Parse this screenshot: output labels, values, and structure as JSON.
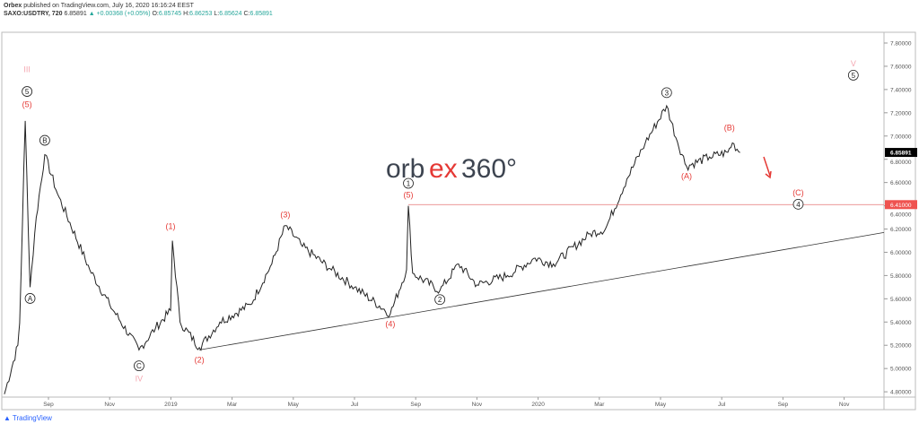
{
  "header": {
    "publisher": "Orbex",
    "published_text": "published on TradingView.com, July 16, 2020 16:16:24 EEST",
    "symbol": "SAXO:USDTRY, 720",
    "last": "6.85891",
    "arrow": "▲",
    "change": "+0.00368 (+0.05%)",
    "o_label": "O:",
    "o": "6.85745",
    "h_label": "H:",
    "h": "6.86253",
    "l_label": "L:",
    "l": "6.85624",
    "c_label": "C:",
    "c": "6.85891"
  },
  "logo": {
    "part1": "orb",
    "part2": "ex",
    "part3": "360°"
  },
  "footer": {
    "brand": "TradingView"
  },
  "colors": {
    "accent": "#e53935",
    "price_tag": "#000000",
    "level_tag": "#ef5350",
    "line": "#000000",
    "roman": "#f4a6b0"
  },
  "chart_data": {
    "type": "line",
    "title": "SAXO:USDTRY, 720",
    "x_unit": "months since 2018-08-01",
    "ylim": [
      4.8,
      7.8
    ],
    "yticks": [
      "7.80000",
      "7.60000",
      "7.40000",
      "7.20000",
      "7.00000",
      "6.80000",
      "6.60000",
      "6.40000",
      "6.20000",
      "6.00000",
      "5.80000",
      "5.60000",
      "5.40000",
      "5.20000",
      "5.00000",
      "4.80000"
    ],
    "ytick_values": [
      7.8,
      7.6,
      7.4,
      7.2,
      7.0,
      6.8,
      6.6,
      6.4,
      6.2,
      6.0,
      5.8,
      5.6,
      5.4,
      5.2,
      5.0,
      4.8
    ],
    "xticks": [
      "Sep",
      "Nov",
      "2019",
      "Mar",
      "May",
      "Jul",
      "Sep",
      "Nov",
      "2020",
      "Mar",
      "May",
      "Jul",
      "Sep",
      "Nov"
    ],
    "xtick_values": [
      1,
      3,
      5,
      7,
      9,
      11,
      13,
      15,
      17,
      19,
      21,
      23,
      25,
      27
    ],
    "last_price": {
      "label": "6.85891",
      "value": 6.85891
    },
    "level": {
      "label": "6.41000",
      "value": 6.41,
      "from_t": 12.76
    },
    "trendline": {
      "t": [
        5.93,
        28.3
      ],
      "p": [
        5.16,
        6.17
      ]
    },
    "series": [
      {
        "name": "USDTRY",
        "t": [
          -0.44,
          0.0,
          0.06,
          0.24,
          0.4,
          0.6,
          0.88,
          1.3,
          2.35,
          3.0,
          3.96,
          4.5,
          4.99,
          5.05,
          5.3,
          5.93,
          6.6,
          7.6,
          8.3,
          8.74,
          9.3,
          10.2,
          11.0,
          12.17,
          12.7,
          12.76,
          12.9,
          13.79,
          14.4,
          15.0,
          16.0,
          16.9,
          17.5,
          18.7,
          19.2,
          19.9,
          20.5,
          21.2,
          21.55,
          21.85,
          22.6,
          23.2,
          23.35,
          23.6
        ],
        "p": [
          4.78,
          5.2,
          5.39,
          7.13,
          5.7,
          6.3,
          6.84,
          6.5,
          5.85,
          5.55,
          5.16,
          5.35,
          5.5,
          6.1,
          5.4,
          5.18,
          5.4,
          5.55,
          5.9,
          6.23,
          6.05,
          5.86,
          5.7,
          5.47,
          5.85,
          6.4,
          5.82,
          5.67,
          5.9,
          5.72,
          5.8,
          5.95,
          5.9,
          6.16,
          6.2,
          6.63,
          6.94,
          7.26,
          6.95,
          6.74,
          6.82,
          6.86,
          6.94,
          6.858
        ]
      }
    ],
    "annotations": [
      {
        "text": "III",
        "t": 0.3,
        "p": 7.55,
        "color": "roman"
      },
      {
        "text": "5",
        "t": 0.3,
        "p": 7.36,
        "circle": true
      },
      {
        "text": "(5)",
        "t": 0.3,
        "p": 7.25,
        "color": "red"
      },
      {
        "text": "A",
        "t": 0.4,
        "p": 5.58,
        "circle": true
      },
      {
        "text": "B",
        "t": 0.88,
        "p": 6.94,
        "circle": true
      },
      {
        "text": "C",
        "t": 3.96,
        "p": 5.0,
        "circle": true
      },
      {
        "text": "IV",
        "t": 3.96,
        "p": 4.89,
        "color": "roman"
      },
      {
        "text": "(1)",
        "t": 4.99,
        "p": 6.2,
        "color": "red"
      },
      {
        "text": "(2)",
        "t": 5.93,
        "p": 5.05,
        "color": "red"
      },
      {
        "text": "(3)",
        "t": 8.74,
        "p": 6.3,
        "color": "red"
      },
      {
        "text": "(4)",
        "t": 12.17,
        "p": 5.36,
        "color": "red"
      },
      {
        "text": "1",
        "t": 12.76,
        "p": 6.57,
        "circle": true
      },
      {
        "text": "(5)",
        "t": 12.76,
        "p": 6.47,
        "color": "red"
      },
      {
        "text": "2",
        "t": 13.79,
        "p": 5.57,
        "circle": true
      },
      {
        "text": "3",
        "t": 21.2,
        "p": 7.35,
        "circle": true
      },
      {
        "text": "(A)",
        "t": 21.85,
        "p": 6.63,
        "color": "red"
      },
      {
        "text": "(B)",
        "t": 23.25,
        "p": 7.05,
        "color": "red"
      },
      {
        "text": "(C)",
        "t": 25.5,
        "p": 6.49,
        "color": "red"
      },
      {
        "text": "4",
        "t": 25.5,
        "p": 6.39,
        "circle": true
      },
      {
        "text": "V",
        "t": 27.3,
        "p": 7.6,
        "color": "roman"
      },
      {
        "text": "5",
        "t": 27.3,
        "p": 7.5,
        "circle": true
      }
    ]
  }
}
